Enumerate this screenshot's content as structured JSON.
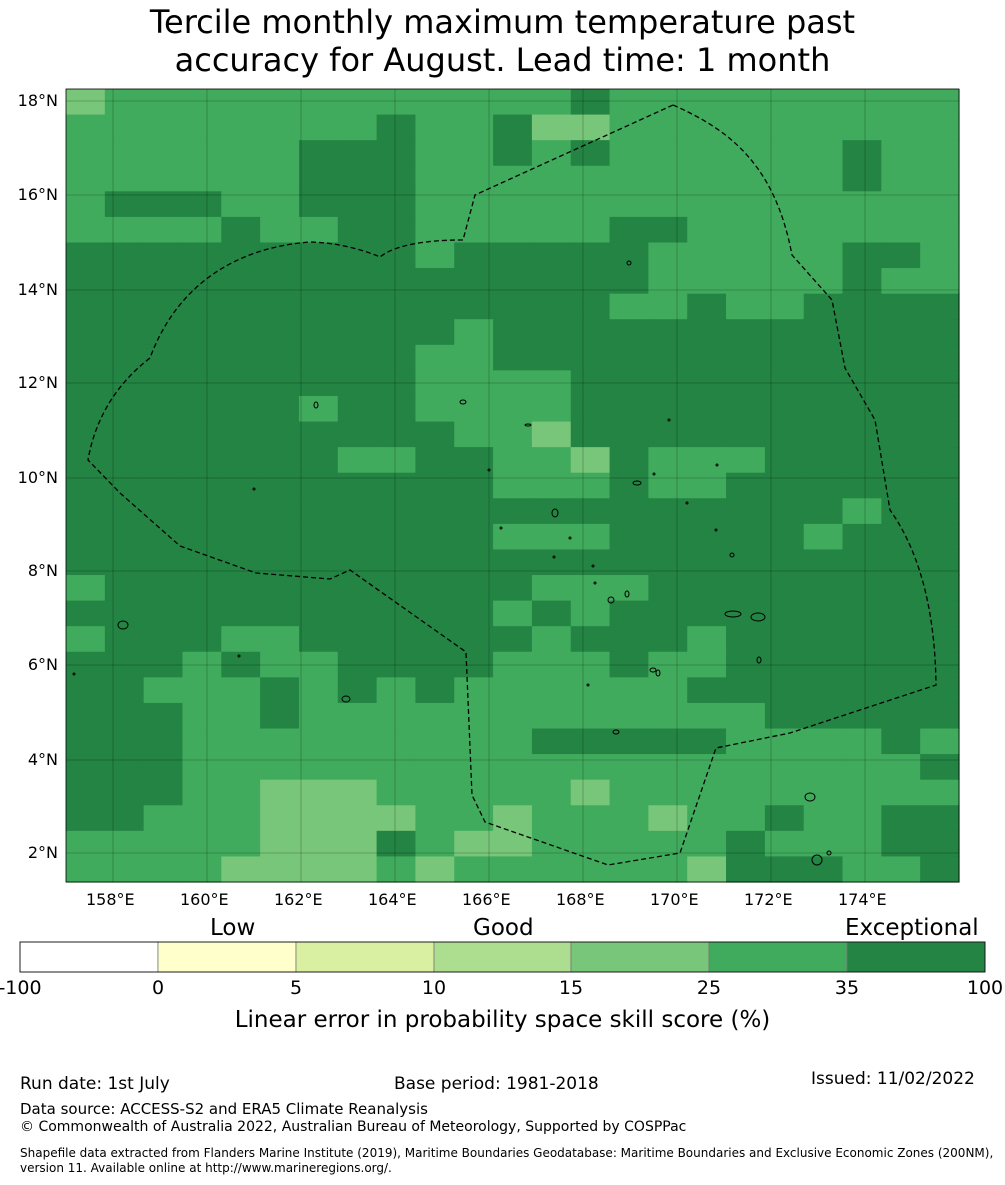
{
  "title_line1": "Tercile monthly maximum temperature past",
  "title_line2": "accuracy for August. Lead time: 1 month",
  "map": {
    "lat_labels": [
      "18°N",
      "16°N",
      "14°N",
      "12°N",
      "10°N",
      "8°N",
      "6°N",
      "4°N",
      "2°N"
    ],
    "lon_labels": [
      "158°E",
      "160°E",
      "162°E",
      "164°E",
      "166°E",
      "168°E",
      "170°E",
      "172°E",
      "174°E"
    ],
    "lat_range": [
      1.4,
      18.3
    ],
    "lon_range": [
      157,
      176
    ],
    "boundary": "dashed-eez-outline"
  },
  "colorbar": {
    "categories": [
      "Low",
      "Good",
      "Exceptional"
    ],
    "ticks": [
      "-100",
      "0",
      "5",
      "10",
      "15",
      "25",
      "35",
      "100"
    ],
    "colors": [
      "#ffffff",
      "#ffffcc",
      "#d9f0a3",
      "#addd8e",
      "#78c679",
      "#41ab5d",
      "#238443"
    ],
    "label": "Linear error in probability space skill score (%)"
  },
  "footer": {
    "run_date": "Run date: 1st July",
    "base_period": "Base period: 1981-2018",
    "issued": "Issued: 11/02/2022",
    "data_source": "Data source: ACCESS-S2 and ERA5 Climate Reanalysis",
    "copyright": "© Commonwealth of Australia 2022, Australian Bureau of Meteorology, Supported by COSPPac",
    "shapefile_line1": "Shapefile data extracted from Flanders Marine Institute (2019), Maritime Boundaries Geodatabase: Maritime Boundaries and Exclusive Economic Zones (200NM),",
    "shapefile_line2": "version 11. Available online at http://www.marineregions.org/."
  }
}
